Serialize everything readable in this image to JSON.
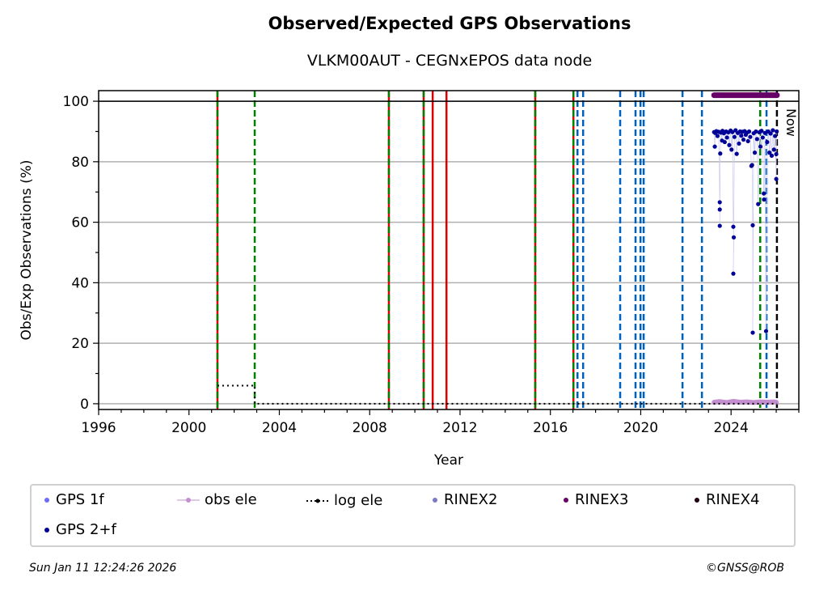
{
  "chart_data": {
    "type": "scatter",
    "title": "Observed/Expected GPS Observations",
    "subtitle": "VLKM00AUT - CEGNxEPOS data node",
    "xlabel": "Year",
    "ylabel": "Obs/Exp Observations (%)",
    "xlim": [
      1996,
      2027
    ],
    "ylim": [
      -1.9,
      103.5
    ],
    "xticks": [
      1996,
      2000,
      2004,
      2008,
      2012,
      2016,
      2020,
      2024
    ],
    "yticks": [
      0,
      20,
      40,
      60,
      80,
      100
    ],
    "grid": "horizontal",
    "reference_line": 100,
    "now_label": "Now",
    "now_year": 2026.03,
    "event_lines": [
      {
        "year": 2001.26,
        "style": "red-green-dashed"
      },
      {
        "year": 2002.91,
        "style": "green-dashed"
      },
      {
        "year": 2008.85,
        "style": "red-green-dashed"
      },
      {
        "year": 2010.39,
        "style": "red-green-dashed"
      },
      {
        "year": 2010.79,
        "style": "red-solid"
      },
      {
        "year": 2011.4,
        "style": "red-solid"
      },
      {
        "year": 2015.33,
        "style": "red-green-dashed"
      },
      {
        "year": 2017.02,
        "style": "red-green-dashed"
      },
      {
        "year": 2017.2,
        "style": "blue-dashed"
      },
      {
        "year": 2017.45,
        "style": "blue-dashed"
      },
      {
        "year": 2019.09,
        "style": "blue-dashed"
      },
      {
        "year": 2019.77,
        "style": "blue-dashed"
      },
      {
        "year": 2019.99,
        "style": "blue-dashed"
      },
      {
        "year": 2020.13,
        "style": "blue-dashed"
      },
      {
        "year": 2021.85,
        "style": "blue-dashed"
      },
      {
        "year": 2022.71,
        "style": "blue-dashed"
      },
      {
        "year": 2025.29,
        "style": "green-dashed"
      },
      {
        "year": 2025.57,
        "style": "blue-dashed"
      },
      {
        "year": 2026.03,
        "style": "black-dashed"
      }
    ],
    "series": [
      {
        "name": "GPS 1f",
        "color": "#6b6bff",
        "points": []
      },
      {
        "name": "obs ele",
        "color": "#c38fd0",
        "points": [
          [
            2023.25,
            0.5
          ],
          [
            2023.5,
            0.7
          ],
          [
            2023.8,
            0.4
          ],
          [
            2024.1,
            0.8
          ],
          [
            2024.4,
            0.5
          ],
          [
            2024.7,
            0.6
          ],
          [
            2025.0,
            0.4
          ],
          [
            2025.3,
            0.6
          ],
          [
            2025.6,
            0.5
          ],
          [
            2025.9,
            0.6
          ],
          [
            2026.0,
            0.5
          ]
        ]
      },
      {
        "name": "log ele",
        "color": "#000000",
        "points": [
          [
            2001.26,
            6
          ],
          [
            2002.91,
            6
          ],
          [
            2002.91,
            0
          ],
          [
            2026.03,
            0
          ]
        ]
      },
      {
        "name": "RINEX2",
        "color": "#7a7ac8",
        "points": []
      },
      {
        "name": "RINEX3",
        "color": "#660066",
        "points": [
          [
            2023.25,
            102
          ],
          [
            2026.03,
            102
          ]
        ]
      },
      {
        "name": "RINEX4",
        "color": "#220011",
        "points": []
      },
      {
        "name": "GPS 2+f",
        "color": "#000099",
        "points": [
          [
            2023.25,
            89.8
          ],
          [
            2023.28,
            85
          ],
          [
            2023.3,
            89.5
          ],
          [
            2023.35,
            90.1
          ],
          [
            2023.4,
            88.5
          ],
          [
            2023.45,
            89.9
          ],
          [
            2023.5,
            66.6
          ],
          [
            2023.5,
            64.2
          ],
          [
            2023.5,
            58.8
          ],
          [
            2023.52,
            82.7
          ],
          [
            2023.55,
            89.6
          ],
          [
            2023.6,
            87
          ],
          [
            2023.62,
            90.2
          ],
          [
            2023.68,
            89.4
          ],
          [
            2023.72,
            86.5
          ],
          [
            2023.78,
            90
          ],
          [
            2023.82,
            88
          ],
          [
            2023.88,
            89.7
          ],
          [
            2023.92,
            85.5
          ],
          [
            2023.98,
            90.3
          ],
          [
            2024.02,
            84
          ],
          [
            2024.06,
            89.8
          ],
          [
            2024.1,
            58.5
          ],
          [
            2024.12,
            55
          ],
          [
            2024.1,
            43
          ],
          [
            2024.15,
            88.2
          ],
          [
            2024.2,
            90.4
          ],
          [
            2024.25,
            82.6
          ],
          [
            2024.3,
            89.5
          ],
          [
            2024.35,
            86
          ],
          [
            2024.4,
            90
          ],
          [
            2024.45,
            88.6
          ],
          [
            2024.5,
            89.9
          ],
          [
            2024.55,
            87.3
          ],
          [
            2024.6,
            90.1
          ],
          [
            2024.65,
            88.9
          ],
          [
            2024.7,
            89.6
          ],
          [
            2024.75,
            86.8
          ],
          [
            2024.8,
            90
          ],
          [
            2024.85,
            88.2
          ],
          [
            2024.9,
            78.6
          ],
          [
            2024.93,
            78.9
          ],
          [
            2024.96,
            59
          ],
          [
            2024.96,
            23.5
          ],
          [
            2025.0,
            89.4
          ],
          [
            2025.05,
            83
          ],
          [
            2025.1,
            90
          ],
          [
            2025.15,
            87.5
          ],
          [
            2025.2,
            66
          ],
          [
            2025.25,
            89.7
          ],
          [
            2025.3,
            85
          ],
          [
            2025.35,
            90.2
          ],
          [
            2025.4,
            88
          ],
          [
            2025.45,
            69.5
          ],
          [
            2025.46,
            67.5
          ],
          [
            2025.5,
            89.5
          ],
          [
            2025.55,
            24
          ],
          [
            2025.6,
            86.5
          ],
          [
            2025.65,
            90
          ],
          [
            2025.7,
            83
          ],
          [
            2025.75,
            89.3
          ],
          [
            2025.8,
            82
          ],
          [
            2025.85,
            90.4
          ],
          [
            2025.9,
            84
          ],
          [
            2025.95,
            88.5
          ],
          [
            2026.0,
            74.3
          ],
          [
            2026.0,
            82.5
          ],
          [
            2026.02,
            90
          ]
        ]
      }
    ]
  },
  "legend": {
    "items": [
      "GPS 1f",
      "obs ele",
      "log ele",
      "RINEX2",
      "RINEX3",
      "RINEX4",
      "GPS 2+f"
    ]
  },
  "footer": {
    "timestamp": "Sun Jan 11 12:24:26 2026",
    "credit": "©GNSS@ROB"
  }
}
